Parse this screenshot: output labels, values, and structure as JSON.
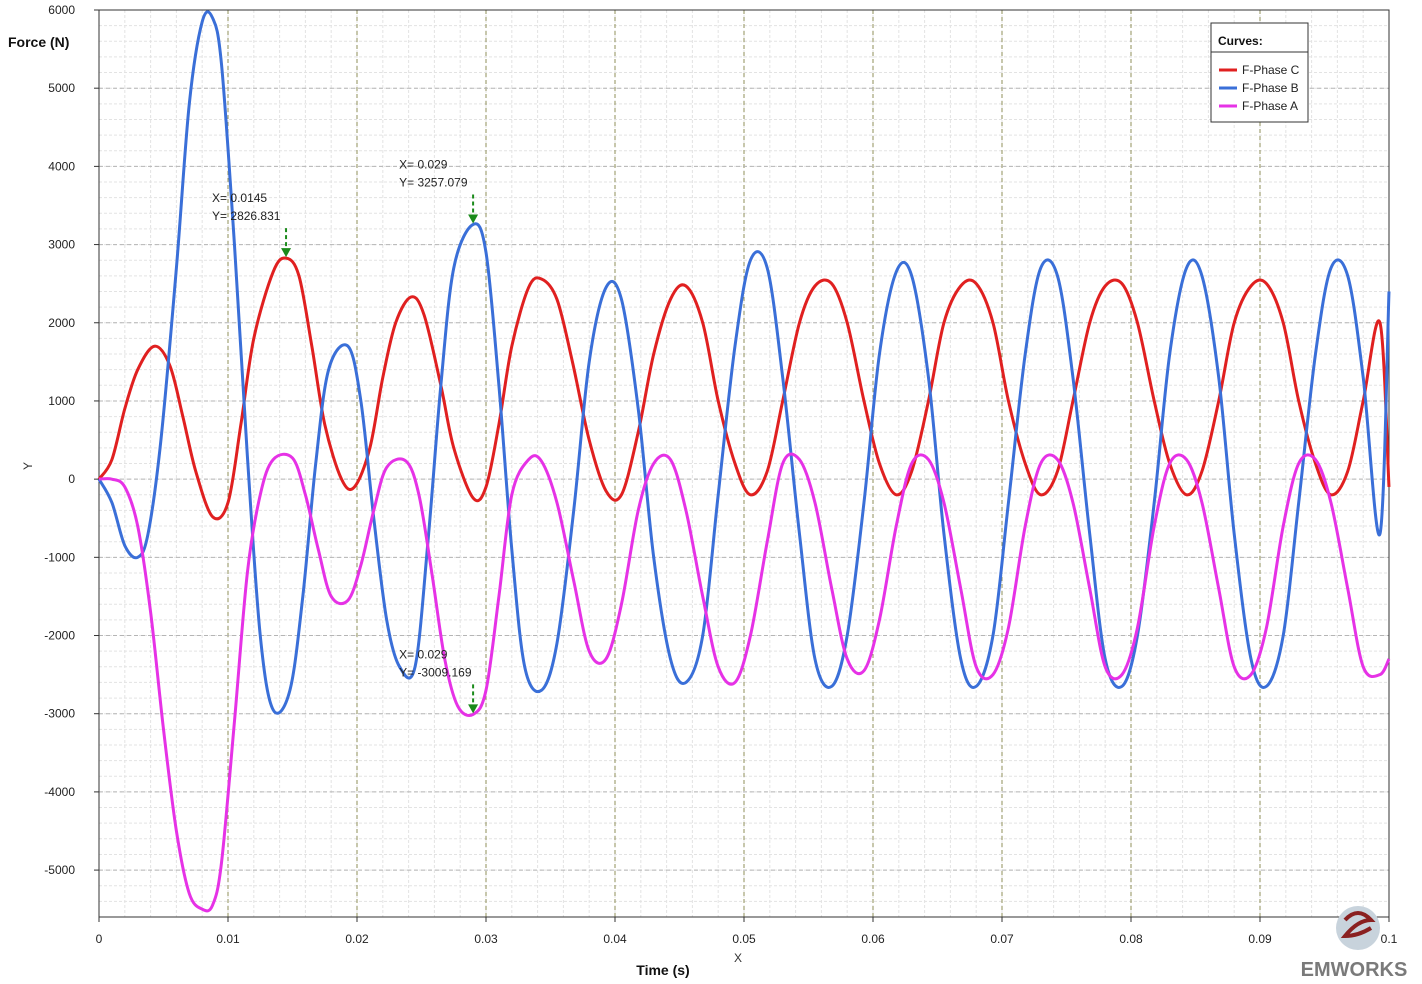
{
  "chart_data": {
    "type": "line",
    "title": "",
    "xlabel": "Time (s)",
    "ylabel": "Force (N)",
    "x_axis_letter": "X",
    "y_axis_letter": "Y",
    "xlim": [
      0,
      0.1
    ],
    "ylim": [
      -5600,
      6000
    ],
    "x_ticks": [
      0,
      0.01,
      0.02,
      0.03,
      0.04,
      0.05,
      0.06,
      0.07,
      0.08,
      0.09,
      0.1
    ],
    "x_tick_labels": [
      "0",
      "0.01",
      "0.02",
      "0.03",
      "0.04",
      "0.05",
      "0.06",
      "0.07",
      "0.08",
      "0.09",
      "0.1"
    ],
    "y_ticks": [
      6000,
      5000,
      4000,
      3000,
      2000,
      1000,
      0,
      -1000,
      -2000,
      -3000,
      -4000,
      -5000
    ],
    "y_tick_labels": [
      "6000",
      "5000",
      "4000",
      "3000",
      "2000",
      "1000",
      "0",
      "-1000",
      "-2000",
      "-3000",
      "-4000",
      "-5000"
    ],
    "grid": true,
    "legend_placement": "top-right",
    "legend_title": "Curves:",
    "series": [
      {
        "name": "F-Phase C",
        "color": "#e02020",
        "x": [
          0,
          0.001,
          0.002,
          0.003,
          0.0043,
          0.0055,
          0.0065,
          0.0075,
          0.0088,
          0.01,
          0.011,
          0.012,
          0.0135,
          0.0145,
          0.0155,
          0.0165,
          0.0175,
          0.0188,
          0.0198,
          0.021,
          0.022,
          0.023,
          0.0242,
          0.0252,
          0.0265,
          0.0275,
          0.029,
          0.03,
          0.031,
          0.032,
          0.0333,
          0.0343,
          0.0355,
          0.0367,
          0.038,
          0.0393,
          0.0405,
          0.0418,
          0.043,
          0.0443,
          0.0455,
          0.0468,
          0.048,
          0.0493,
          0.0505,
          0.0518,
          0.053,
          0.0543,
          0.0555,
          0.0568,
          0.058,
          0.0593,
          0.0605,
          0.0618,
          0.063,
          0.0643,
          0.0655,
          0.0668,
          0.068,
          0.0693,
          0.0705,
          0.0718,
          0.073,
          0.0743,
          0.0755,
          0.0768,
          0.078,
          0.0793,
          0.0805,
          0.0818,
          0.083,
          0.0843,
          0.0855,
          0.0868,
          0.088,
          0.0893,
          0.0905,
          0.0918,
          0.093,
          0.0943,
          0.0955,
          0.0968,
          0.098,
          0.0993,
          0.1
        ],
        "y": [
          0,
          250,
          900,
          1400,
          1700,
          1450,
          800,
          100,
          -480,
          -300,
          700,
          1800,
          2650,
          2827,
          2600,
          1700,
          700,
          0,
          -100,
          400,
          1300,
          2000,
          2330,
          2100,
          1200,
          400,
          -240,
          -100,
          700,
          1700,
          2450,
          2560,
          2300,
          1500,
          500,
          -150,
          -200,
          600,
          1600,
          2300,
          2470,
          2000,
          1000,
          200,
          -200,
          100,
          1000,
          2000,
          2470,
          2500,
          2000,
          1000,
          200,
          -200,
          100,
          1000,
          2000,
          2470,
          2500,
          2000,
          1000,
          200,
          -200,
          100,
          1000,
          2000,
          2470,
          2500,
          2000,
          1000,
          200,
          -200,
          100,
          1000,
          2000,
          2470,
          2500,
          2000,
          1000,
          200,
          -200,
          100,
          1000,
          2000,
          -100
        ]
      },
      {
        "name": "F-Phase B",
        "color": "#3a6fd8",
        "x": [
          0,
          0.001,
          0.002,
          0.003,
          0.0038,
          0.0048,
          0.006,
          0.007,
          0.008,
          0.0088,
          0.0095,
          0.0105,
          0.0115,
          0.0125,
          0.0135,
          0.0148,
          0.0158,
          0.0168,
          0.0178,
          0.0193,
          0.0203,
          0.0213,
          0.0223,
          0.0233,
          0.0245,
          0.0255,
          0.0265,
          0.0275,
          0.029,
          0.03,
          0.031,
          0.032,
          0.033,
          0.0343,
          0.0355,
          0.0368,
          0.038,
          0.0393,
          0.0405,
          0.0418,
          0.043,
          0.0443,
          0.0455,
          0.0468,
          0.048,
          0.0493,
          0.0505,
          0.0518,
          0.053,
          0.0543,
          0.0555,
          0.0568,
          0.058,
          0.0593,
          0.0605,
          0.0618,
          0.063,
          0.0643,
          0.0655,
          0.0668,
          0.068,
          0.0693,
          0.0705,
          0.0718,
          0.073,
          0.0743,
          0.0755,
          0.0768,
          0.078,
          0.0793,
          0.0805,
          0.0818,
          0.083,
          0.0843,
          0.0855,
          0.0868,
          0.088,
          0.0893,
          0.0905,
          0.0918,
          0.093,
          0.0943,
          0.0955,
          0.0968,
          0.098,
          0.0993,
          0.1
        ],
        "y": [
          0,
          -300,
          -850,
          -1000,
          -700,
          500,
          2700,
          4800,
          5850,
          5900,
          5300,
          3000,
          300,
          -2000,
          -2950,
          -2700,
          -1500,
          200,
          1400,
          1700,
          1000,
          -500,
          -1800,
          -2400,
          -2400,
          -800,
          1200,
          2700,
          3257,
          2900,
          1200,
          -900,
          -2400,
          -2700,
          -2100,
          -400,
          1500,
          2450,
          2300,
          900,
          -1000,
          -2300,
          -2600,
          -2000,
          -200,
          1700,
          2800,
          2700,
          1300,
          -700,
          -2300,
          -2650,
          -2000,
          -300,
          1600,
          2650,
          2600,
          1300,
          -700,
          -2300,
          -2650,
          -2000,
          -300,
          1600,
          2700,
          2600,
          1300,
          -700,
          -2300,
          -2650,
          -2000,
          -300,
          1600,
          2700,
          2600,
          1300,
          -700,
          -2300,
          -2650,
          -2000,
          -300,
          1600,
          2700,
          2600,
          1300,
          -700,
          2400
        ]
      },
      {
        "name": "F-Phase A",
        "color": "#e632e6",
        "x": [
          0,
          0.001,
          0.002,
          0.003,
          0.004,
          0.005,
          0.006,
          0.007,
          0.008,
          0.0088,
          0.0095,
          0.0105,
          0.0115,
          0.0125,
          0.0135,
          0.015,
          0.016,
          0.017,
          0.018,
          0.0193,
          0.0203,
          0.0213,
          0.0223,
          0.0238,
          0.0248,
          0.0258,
          0.0268,
          0.0278,
          0.029,
          0.03,
          0.031,
          0.032,
          0.0333,
          0.0343,
          0.0355,
          0.0368,
          0.038,
          0.0393,
          0.0405,
          0.0418,
          0.043,
          0.0443,
          0.0455,
          0.0468,
          0.048,
          0.0493,
          0.0505,
          0.0518,
          0.053,
          0.0543,
          0.0555,
          0.0568,
          0.058,
          0.0593,
          0.0605,
          0.0618,
          0.063,
          0.0643,
          0.0655,
          0.0668,
          0.068,
          0.0693,
          0.0705,
          0.0718,
          0.073,
          0.0743,
          0.0755,
          0.0768,
          0.078,
          0.0793,
          0.0805,
          0.0818,
          0.083,
          0.0843,
          0.0855,
          0.0868,
          0.088,
          0.0893,
          0.0905,
          0.0918,
          0.093,
          0.0943,
          0.0955,
          0.0968,
          0.098,
          0.0993,
          0.1
        ],
        "y": [
          0,
          0,
          -100,
          -600,
          -1700,
          -3200,
          -4500,
          -5300,
          -5500,
          -5450,
          -4900,
          -3100,
          -1200,
          -200,
          250,
          270,
          -200,
          -900,
          -1500,
          -1550,
          -1100,
          -400,
          150,
          230,
          -200,
          -1200,
          -2300,
          -2900,
          -3009,
          -2700,
          -1500,
          -200,
          250,
          230,
          -300,
          -1300,
          -2200,
          -2300,
          -1600,
          -400,
          200,
          250,
          -400,
          -1500,
          -2400,
          -2600,
          -2000,
          -800,
          200,
          250,
          -300,
          -1400,
          -2300,
          -2450,
          -1800,
          -600,
          200,
          250,
          -300,
          -1400,
          -2400,
          -2500,
          -1900,
          -600,
          200,
          250,
          -300,
          -1400,
          -2400,
          -2500,
          -1900,
          -600,
          200,
          250,
          -300,
          -1400,
          -2400,
          -2500,
          -1900,
          -600,
          200,
          250,
          -300,
          -1400,
          -2400,
          -2500,
          -2300
        ]
      }
    ],
    "annotations": [
      {
        "x": 0.0145,
        "y": 2826.831,
        "line1": "X= 0.0145",
        "line2": "Y= 2826.831",
        "side": "above"
      },
      {
        "x": 0.029,
        "y": 3257.079,
        "line1": "X= 0.029",
        "line2": "Y= 3257.079",
        "side": "above"
      },
      {
        "x": 0.029,
        "y": -3009.169,
        "line1": "X= 0.029",
        "line2": "Y= -3009.169",
        "side": "above"
      }
    ],
    "marker_color": "#1a8a1a",
    "watermark": "EMWORKS"
  }
}
